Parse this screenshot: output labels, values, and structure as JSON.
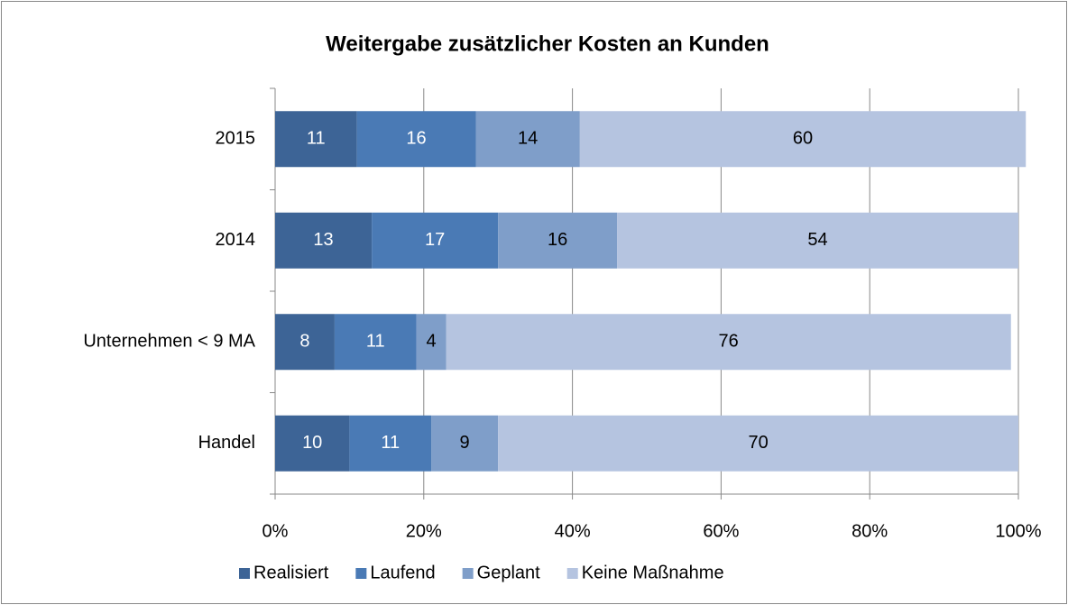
{
  "chart_data": {
    "type": "stacked_barh",
    "title": "Weitergabe zusätzlicher Kosten an Kunden",
    "categories": [
      "2015",
      "2014",
      "Unternehmen < 9 MA",
      "Handel"
    ],
    "series": [
      {
        "name": "Realisiert",
        "color": "#3d6496",
        "label_color": "#ffffff",
        "values": [
          11,
          13,
          8,
          10
        ]
      },
      {
        "name": "Laufend",
        "color": "#4a7ab5",
        "label_color": "#ffffff",
        "values": [
          16,
          17,
          11,
          11
        ]
      },
      {
        "name": "Geplant",
        "color": "#7f9ec9",
        "label_color": "#000000",
        "values": [
          14,
          16,
          4,
          9
        ]
      },
      {
        "name": "Keine Maßnahme",
        "color": "#b5c4e0",
        "label_color": "#000000",
        "values": [
          60,
          54,
          76,
          70
        ]
      }
    ],
    "xlim": [
      0,
      100
    ],
    "xticks": [
      {
        "value": 0,
        "label": "0%"
      },
      {
        "value": 20,
        "label": "20%"
      },
      {
        "value": 40,
        "label": "40%"
      },
      {
        "value": 60,
        "label": "60%"
      },
      {
        "value": 80,
        "label": "80%"
      },
      {
        "value": 100,
        "label": "100%"
      }
    ],
    "grid": true,
    "legend": "bottom"
  }
}
